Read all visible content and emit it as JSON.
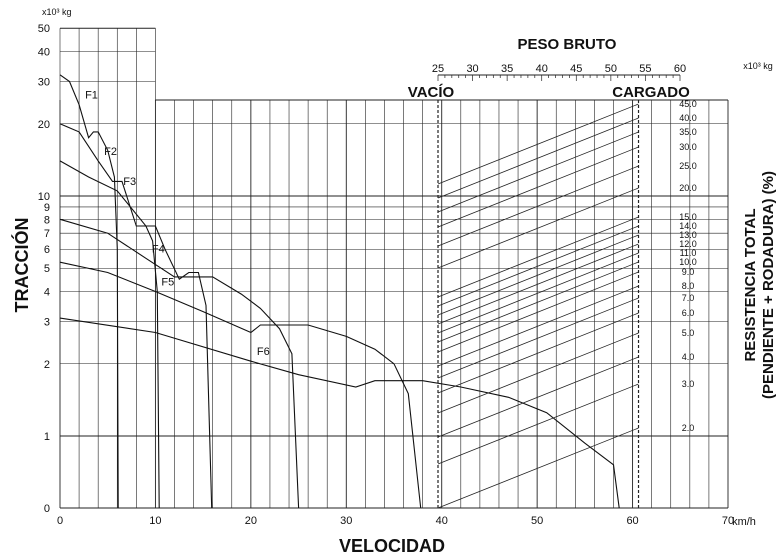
{
  "chart_data": {
    "type": "line",
    "title": "",
    "xlabel": "VELOCIDAD",
    "x_unit": "km/h",
    "xlim": [
      0,
      70
    ],
    "x_ticks": [
      0,
      10,
      20,
      30,
      40,
      50,
      60,
      70
    ],
    "ylabel": "TRACCIÓN",
    "y_unit": "x10³ kg",
    "y_scale": "log",
    "y_ticks": [
      0,
      1,
      2,
      3,
      4,
      5,
      6,
      7,
      8,
      9,
      10,
      20,
      30,
      40,
      50
    ],
    "grid": true,
    "top_axis": {
      "title": "PESO BRUTO",
      "unit": "x10³ kg",
      "ticks": [
        25,
        30,
        35,
        40,
        45,
        50,
        55,
        60
      ],
      "empty_label": "VACÍO",
      "empty_weight": 25,
      "loaded_label": "CARGADO",
      "loaded_weight": 54
    },
    "right_axis": {
      "title_line1": "RESISTENCIA TOTAL",
      "title_line2": "(PENDIENTE + RODADURA) (%)",
      "labels": [
        "45.0",
        "40.0",
        "35.0",
        "30.0",
        "25.0",
        "20.0",
        "15.0",
        "14.0",
        "13.0",
        "12.0",
        "11.0",
        "10.0",
        "9.0",
        "8.0",
        "7.0",
        "6.0",
        "5.0",
        "4.0",
        "3.0",
        "2.0"
      ],
      "values": [
        45,
        40,
        35,
        30,
        25,
        20,
        15,
        14,
        13,
        12,
        11,
        10,
        9,
        8,
        7,
        6,
        5,
        4,
        3,
        2
      ]
    },
    "series": [
      {
        "name": "F1",
        "points": [
          [
            0,
            32
          ],
          [
            1,
            30
          ],
          [
            2,
            24
          ],
          [
            3,
            17.5
          ],
          [
            3.5,
            18.5
          ],
          [
            4,
            18.5
          ],
          [
            5,
            15.5
          ],
          [
            5.7,
            12
          ],
          [
            6,
            6
          ],
          [
            6.1,
            0
          ]
        ]
      },
      {
        "name": "F2",
        "points": [
          [
            0,
            20
          ],
          [
            2,
            18.5
          ],
          [
            4,
            14
          ],
          [
            5.5,
            11.5
          ],
          [
            6.5,
            11.5
          ],
          [
            8,
            7.5
          ],
          [
            9,
            7.5
          ],
          [
            9.7,
            6.5
          ],
          [
            10.2,
            4
          ],
          [
            10.4,
            0
          ]
        ]
      },
      {
        "name": "F3",
        "points": [
          [
            0,
            14
          ],
          [
            3,
            12
          ],
          [
            6,
            10.5
          ],
          [
            9,
            7.5
          ],
          [
            10,
            7.5
          ],
          [
            11,
            6
          ],
          [
            12.5,
            4.5
          ],
          [
            13.5,
            4.8
          ],
          [
            14.5,
            4.8
          ],
          [
            15.3,
            3.5
          ],
          [
            15.9,
            0
          ]
        ]
      },
      {
        "name": "F4",
        "points": [
          [
            0,
            8
          ],
          [
            5,
            7
          ],
          [
            9,
            5.5
          ],
          [
            12,
            4.6
          ],
          [
            14,
            4.6
          ],
          [
            16,
            4.6
          ],
          [
            19,
            3.9
          ],
          [
            21,
            3.4
          ],
          [
            23,
            2.8
          ],
          [
            24.3,
            2.2
          ],
          [
            25,
            0
          ]
        ]
      },
      {
        "name": "F5",
        "points": [
          [
            0,
            5.3
          ],
          [
            5,
            4.8
          ],
          [
            10,
            4
          ],
          [
            15,
            3.3
          ],
          [
            20,
            2.7
          ],
          [
            21,
            2.9
          ],
          [
            26,
            2.9
          ],
          [
            30,
            2.6
          ],
          [
            33,
            2.3
          ],
          [
            35,
            2
          ],
          [
            36.5,
            1.5
          ],
          [
            37.8,
            0
          ]
        ]
      },
      {
        "name": "F6",
        "points": [
          [
            0,
            3.1
          ],
          [
            10,
            2.7
          ],
          [
            20,
            2.05
          ],
          [
            25,
            1.8
          ],
          [
            31,
            1.6
          ],
          [
            33,
            1.7
          ],
          [
            38,
            1.7
          ],
          [
            42,
            1.6
          ],
          [
            47,
            1.45
          ],
          [
            51,
            1.25
          ],
          [
            55,
            0.9
          ],
          [
            58,
            0.6
          ],
          [
            58.6,
            0
          ]
        ]
      }
    ]
  }
}
